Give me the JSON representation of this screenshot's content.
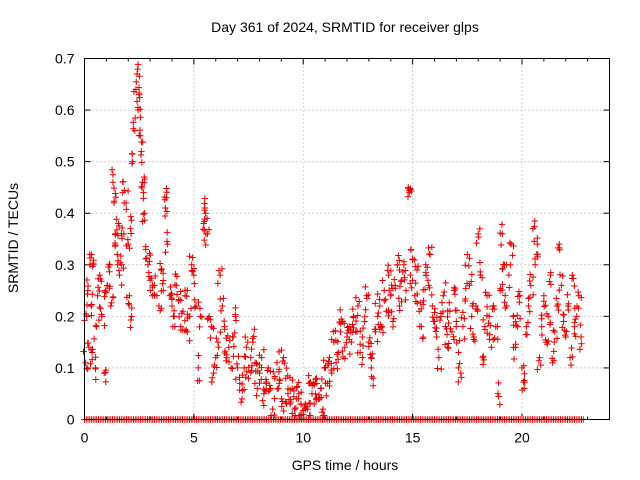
{
  "chart_data": {
    "type": "scatter",
    "title": "Day 361 of 2024, SRMTID for receiver glps",
    "xlabel": "GPS time / hours",
    "ylabel": "SRMTID / TECUs",
    "xlim": [
      0,
      24
    ],
    "ylim": [
      0,
      0.7
    ],
    "xticks": [
      0,
      5,
      10,
      15,
      20
    ],
    "yticks": [
      0,
      0.1,
      0.2,
      0.3,
      0.4,
      0.5,
      0.6,
      0.7
    ],
    "xtick_labels": [
      "0",
      "5",
      "10",
      "15",
      "20"
    ],
    "ytick_labels": [
      "0",
      "0.1",
      "0.2",
      "0.3",
      "0.4",
      "0.5",
      "0.6",
      "0.7"
    ],
    "grid": true,
    "marker": "+",
    "color": "#e00000",
    "series": [
      {
        "name": "SRMTID",
        "points": [
          [
            0.05,
            0.11
          ],
          [
            0.1,
            0.2
          ],
          [
            0.15,
            0.25
          ],
          [
            0.2,
            0.14
          ],
          [
            0.25,
            0.3
          ],
          [
            0.3,
            0.22
          ],
          [
            0.35,
            0.13
          ],
          [
            0.4,
            0.3
          ],
          [
            0.5,
            0.1
          ],
          [
            0.55,
            0.18
          ],
          [
            0.6,
            0.24
          ],
          [
            0.7,
            0.28
          ],
          [
            0.8,
            0.2
          ],
          [
            0.9,
            0.09
          ],
          [
            0.95,
            0.25
          ],
          [
            1.05,
            0.26
          ],
          [
            1.15,
            0.3
          ],
          [
            1.2,
            0.22
          ],
          [
            1.3,
            0.46
          ],
          [
            1.35,
            0.42
          ],
          [
            1.4,
            0.36
          ],
          [
            1.5,
            0.32
          ],
          [
            1.55,
            0.38
          ],
          [
            1.6,
            0.28
          ],
          [
            1.7,
            0.3
          ],
          [
            1.75,
            0.44
          ],
          [
            1.8,
            0.36
          ],
          [
            1.9,
            0.42
          ],
          [
            2.0,
            0.34
          ],
          [
            2.05,
            0.24
          ],
          [
            2.1,
            0.37
          ],
          [
            2.15,
            0.2
          ],
          [
            2.2,
            0.5
          ],
          [
            2.3,
            0.56
          ],
          [
            2.35,
            0.64
          ],
          [
            2.4,
            0.67
          ],
          [
            2.45,
            0.6
          ],
          [
            2.5,
            0.63
          ],
          [
            2.55,
            0.55
          ],
          [
            2.6,
            0.52
          ],
          [
            2.65,
            0.46
          ],
          [
            2.7,
            0.44
          ],
          [
            2.75,
            0.4
          ],
          [
            2.8,
            0.33
          ],
          [
            2.9,
            0.3
          ],
          [
            3.0,
            0.27
          ],
          [
            3.1,
            0.24
          ],
          [
            3.2,
            0.26
          ],
          [
            3.4,
            0.22
          ],
          [
            3.5,
            0.29
          ],
          [
            3.6,
            0.25
          ],
          [
            3.7,
            0.41
          ],
          [
            3.75,
            0.43
          ],
          [
            3.8,
            0.34
          ],
          [
            3.9,
            0.24
          ],
          [
            4.0,
            0.22
          ],
          [
            4.1,
            0.2
          ],
          [
            4.2,
            0.26
          ],
          [
            4.3,
            0.23
          ],
          [
            4.4,
            0.18
          ],
          [
            4.5,
            0.21
          ],
          [
            4.6,
            0.24
          ],
          [
            4.7,
            0.17
          ],
          [
            4.8,
            0.2
          ],
          [
            4.9,
            0.3
          ],
          [
            5.0,
            0.28
          ],
          [
            5.1,
            0.22
          ],
          [
            5.2,
            0.1
          ],
          [
            5.3,
            0.2
          ],
          [
            5.45,
            0.38
          ],
          [
            5.5,
            0.41
          ],
          [
            5.55,
            0.36
          ],
          [
            5.6,
            0.39
          ],
          [
            5.7,
            0.2
          ],
          [
            5.8,
            0.18
          ],
          [
            5.9,
            0.09
          ],
          [
            6.0,
            0.12
          ],
          [
            6.1,
            0.15
          ],
          [
            6.2,
            0.28
          ],
          [
            6.3,
            0.22
          ],
          [
            6.4,
            0.18
          ],
          [
            6.5,
            0.12
          ],
          [
            6.6,
            0.14
          ],
          [
            6.7,
            0.1
          ],
          [
            6.8,
            0.16
          ],
          [
            6.9,
            0.2
          ],
          [
            7.0,
            0.1
          ],
          [
            7.1,
            0.07
          ],
          [
            7.2,
            0.04
          ],
          [
            7.3,
            0.1
          ],
          [
            7.4,
            0.14
          ],
          [
            7.5,
            0.08
          ],
          [
            7.6,
            0.12
          ],
          [
            7.7,
            0.15
          ],
          [
            7.8,
            0.11
          ],
          [
            7.9,
            0.06
          ],
          [
            8.0,
            0.09
          ],
          [
            8.1,
            0.12
          ],
          [
            8.2,
            0.05
          ],
          [
            8.3,
            0.07
          ],
          [
            8.4,
            0.1
          ],
          [
            8.5,
            0.06
          ],
          [
            8.6,
            0.02
          ],
          [
            8.7,
            0.08
          ],
          [
            8.8,
            0.11
          ],
          [
            8.9,
            0.07
          ],
          [
            9.0,
            0.04
          ],
          [
            9.1,
            0.12
          ],
          [
            9.2,
            0.08
          ],
          [
            9.3,
            0.05
          ],
          [
            9.4,
            0.03
          ],
          [
            9.5,
            0.06
          ],
          [
            9.6,
            0.02
          ],
          [
            9.7,
            0.04
          ],
          [
            9.8,
            0.05
          ],
          [
            9.9,
            0.03
          ],
          [
            10.0,
            0.01
          ],
          [
            10.1,
            0.03
          ],
          [
            10.2,
            0.02
          ],
          [
            10.3,
            0.07
          ],
          [
            10.4,
            0.05
          ],
          [
            10.5,
            0.03
          ],
          [
            10.6,
            0.08
          ],
          [
            10.7,
            0.04
          ],
          [
            10.8,
            0.06
          ],
          [
            10.9,
            0.02
          ],
          [
            11.0,
            0.1
          ],
          [
            11.1,
            0.07
          ],
          [
            11.2,
            0.12
          ],
          [
            11.3,
            0.09
          ],
          [
            11.4,
            0.15
          ],
          [
            11.5,
            0.11
          ],
          [
            11.6,
            0.13
          ],
          [
            11.7,
            0.17
          ],
          [
            11.8,
            0.19
          ],
          [
            11.9,
            0.14
          ],
          [
            12.0,
            0.16
          ],
          [
            12.1,
            0.18
          ],
          [
            12.2,
            0.15
          ],
          [
            12.3,
            0.2
          ],
          [
            12.4,
            0.17
          ],
          [
            12.5,
            0.22
          ],
          [
            12.6,
            0.13
          ],
          [
            12.7,
            0.16
          ],
          [
            12.8,
            0.19
          ],
          [
            12.9,
            0.24
          ],
          [
            13.0,
            0.15
          ],
          [
            13.1,
            0.12
          ],
          [
            13.2,
            0.08
          ],
          [
            13.3,
            0.17
          ],
          [
            13.4,
            0.2
          ],
          [
            13.5,
            0.22
          ],
          [
            13.6,
            0.18
          ],
          [
            13.7,
            0.25
          ],
          [
            13.8,
            0.21
          ],
          [
            13.9,
            0.28
          ],
          [
            14.0,
            0.24
          ],
          [
            14.1,
            0.19
          ],
          [
            14.2,
            0.26
          ],
          [
            14.3,
            0.3
          ],
          [
            14.4,
            0.22
          ],
          [
            14.5,
            0.27
          ],
          [
            14.6,
            0.3
          ],
          [
            14.7,
            0.25
          ],
          [
            14.8,
            0.45
          ],
          [
            14.85,
            0.44
          ],
          [
            14.9,
            0.28
          ],
          [
            15.0,
            0.31
          ],
          [
            15.1,
            0.24
          ],
          [
            15.2,
            0.29
          ],
          [
            15.3,
            0.21
          ],
          [
            15.4,
            0.18
          ],
          [
            15.5,
            0.23
          ],
          [
            15.6,
            0.3
          ],
          [
            15.7,
            0.27
          ],
          [
            15.8,
            0.32
          ],
          [
            15.9,
            0.22
          ],
          [
            16.0,
            0.19
          ],
          [
            16.1,
            0.16
          ],
          [
            16.2,
            0.12
          ],
          [
            16.3,
            0.2
          ],
          [
            16.4,
            0.24
          ],
          [
            16.5,
            0.18
          ],
          [
            16.6,
            0.14
          ],
          [
            16.7,
            0.21
          ],
          [
            16.8,
            0.17
          ],
          [
            16.9,
            0.25
          ],
          [
            17.0,
            0.19
          ],
          [
            17.1,
            0.13
          ],
          [
            17.2,
            0.09
          ],
          [
            17.3,
            0.18
          ],
          [
            17.4,
            0.23
          ],
          [
            17.5,
            0.32
          ],
          [
            17.6,
            0.26
          ],
          [
            17.7,
            0.2
          ],
          [
            17.8,
            0.16
          ],
          [
            17.9,
            0.22
          ],
          [
            18.0,
            0.36
          ],
          [
            18.1,
            0.28
          ],
          [
            18.2,
            0.12
          ],
          [
            18.3,
            0.18
          ],
          [
            18.4,
            0.24
          ],
          [
            18.5,
            0.2
          ],
          [
            18.6,
            0.14
          ],
          [
            18.7,
            0.22
          ],
          [
            18.8,
            0.18
          ],
          [
            18.9,
            0.05
          ],
          [
            19.0,
            0.25
          ],
          [
            19.1,
            0.36
          ],
          [
            19.2,
            0.3
          ],
          [
            19.3,
            0.22
          ],
          [
            19.4,
            0.28
          ],
          [
            19.5,
            0.34
          ],
          [
            19.6,
            0.2
          ],
          [
            19.7,
            0.14
          ],
          [
            19.8,
            0.18
          ],
          [
            19.9,
            0.24
          ],
          [
            20.0,
            0.1
          ],
          [
            20.1,
            0.06
          ],
          [
            20.2,
            0.18
          ],
          [
            20.3,
            0.22
          ],
          [
            20.4,
            0.26
          ],
          [
            20.5,
            0.37
          ],
          [
            20.6,
            0.3
          ],
          [
            20.7,
            0.34
          ],
          [
            20.8,
            0.12
          ],
          [
            20.9,
            0.18
          ],
          [
            21.0,
            0.24
          ],
          [
            21.1,
            0.15
          ],
          [
            21.2,
            0.2
          ],
          [
            21.3,
            0.28
          ],
          [
            21.4,
            0.11
          ],
          [
            21.5,
            0.17
          ],
          [
            21.6,
            0.22
          ],
          [
            21.7,
            0.34
          ],
          [
            21.8,
            0.26
          ],
          [
            21.9,
            0.19
          ],
          [
            22.0,
            0.16
          ],
          [
            22.1,
            0.22
          ],
          [
            22.2,
            0.12
          ],
          [
            22.3,
            0.28
          ],
          [
            22.4,
            0.18
          ],
          [
            22.5,
            0.2
          ],
          [
            22.6,
            0.24
          ],
          [
            22.7,
            0.16
          ]
        ]
      },
      {
        "name": "zero-level",
        "x_range": [
          0,
          22.8
        ],
        "y": 0
      }
    ]
  }
}
